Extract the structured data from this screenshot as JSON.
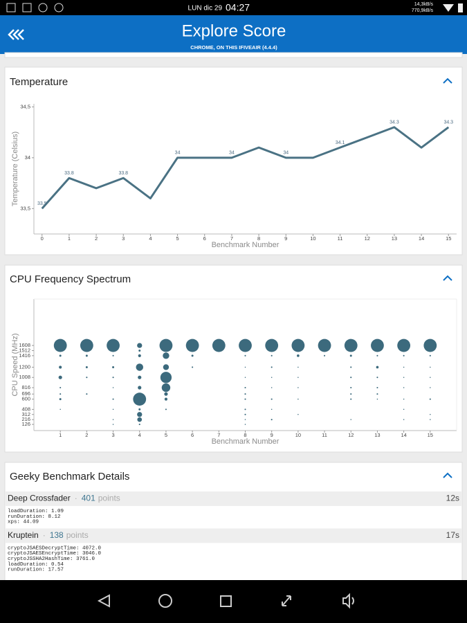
{
  "status_bar": {
    "date": "LUN dic 29",
    "time": "04:27",
    "upload": "14,3kB/s",
    "download": "770,9kB/s"
  },
  "header": {
    "title": "Explore Score",
    "subtitle": "CHROME, ON THIS IFIVEAIR (4.4.4)"
  },
  "chart_data": [
    {
      "type": "line",
      "title": "Temperature",
      "x_label": "Benchmark Number",
      "y_label": "Temperature (Celsius)",
      "x": [
        0,
        1,
        2,
        3,
        4,
        5,
        6,
        7,
        8,
        9,
        10,
        11,
        12,
        13,
        14,
        15
      ],
      "values": [
        33.5,
        33.8,
        33.7,
        33.8,
        33.6,
        34,
        34,
        34,
        34.1,
        34,
        34,
        34.1,
        34.2,
        34.3,
        34.1,
        34.3
      ],
      "value_labels": [
        "33.5",
        "33.8",
        null,
        "33.8",
        null,
        "34",
        null,
        "34",
        null,
        "34",
        null,
        "34.1",
        null,
        "34.3",
        null,
        "34.3"
      ],
      "color": "#4a7284",
      "grid": false,
      "xlim": [
        -0.3,
        15.3
      ],
      "xticks": [
        0,
        1,
        2,
        3,
        4,
        5,
        6,
        7,
        8,
        9,
        10,
        11,
        12,
        13,
        14,
        15
      ],
      "ylim": [
        33.25,
        34.53
      ],
      "yticks": [
        {
          "value": 33.5,
          "label": "33,5"
        },
        34,
        {
          "value": 34.5,
          "label": "34,5"
        }
      ]
    },
    {
      "type": "bubble",
      "title": "CPU Frequency Spectrum",
      "x_label": "Benchmark Number",
      "y_label": "CPU Speed (MHz)",
      "color": "#3c6a7d",
      "grid": false,
      "x": [
        1,
        1,
        1,
        1,
        1,
        1,
        1,
        1,
        2,
        2,
        2,
        2,
        2,
        3,
        3,
        3,
        3,
        3,
        3,
        3,
        3,
        3,
        4,
        4,
        4,
        4,
        4,
        4,
        4,
        4,
        4,
        4,
        4,
        4,
        5,
        5,
        5,
        5,
        5,
        5,
        5,
        5,
        6,
        6,
        6,
        7,
        8,
        8,
        8,
        8,
        8,
        8,
        8,
        8,
        8,
        8,
        8,
        9,
        9,
        9,
        9,
        9,
        9,
        9,
        9,
        10,
        10,
        10,
        10,
        10,
        10,
        10,
        11,
        11,
        12,
        12,
        12,
        12,
        12,
        12,
        12,
        12,
        13,
        13,
        13,
        13,
        13,
        13,
        13,
        14,
        14,
        14,
        14,
        14,
        14,
        14,
        14,
        15,
        15,
        15,
        15,
        15,
        15,
        15,
        15
      ],
      "y": [
        1608,
        1416,
        1200,
        1008,
        816,
        696,
        600,
        408,
        1608,
        1416,
        1200,
        1008,
        696,
        1608,
        1416,
        1200,
        1008,
        816,
        600,
        408,
        216,
        126,
        1608,
        1512,
        1416,
        1200,
        1008,
        816,
        696,
        600,
        408,
        312,
        216,
        126,
        1608,
        1416,
        1200,
        1008,
        816,
        696,
        600,
        408,
        1608,
        1416,
        1200,
        1608,
        1608,
        1416,
        1200,
        1008,
        816,
        696,
        600,
        408,
        312,
        216,
        126,
        1608,
        1416,
        1200,
        1008,
        816,
        600,
        408,
        216,
        1608,
        1416,
        1200,
        1008,
        816,
        600,
        312,
        1608,
        1416,
        1608,
        1416,
        1200,
        1008,
        816,
        696,
        600,
        216,
        1608,
        1416,
        1200,
        1008,
        816,
        696,
        600,
        1608,
        1416,
        1200,
        1008,
        816,
        600,
        408,
        216,
        1608,
        1416,
        1200,
        1008,
        816,
        600,
        312,
        216
      ],
      "sizes": [
        80,
        2,
        4,
        6,
        1,
        1,
        2,
        0.5,
        80,
        2,
        2,
        1,
        1,
        80,
        1,
        2,
        1,
        0.5,
        1,
        0.5,
        0.5,
        0.5,
        12,
        2,
        4,
        25,
        6,
        6,
        3,
        80,
        2,
        12,
        10,
        1,
        80,
        20,
        16,
        60,
        35,
        6,
        4,
        1,
        80,
        2,
        1,
        80,
        80,
        1,
        0.5,
        0.5,
        1,
        1,
        1,
        1,
        1,
        0.5,
        0.5,
        80,
        1,
        1,
        0.5,
        0.5,
        1,
        0.5,
        1,
        80,
        3,
        0.5,
        0.5,
        0.5,
        0.5,
        0.5,
        80,
        1,
        80,
        2,
        1,
        1,
        1,
        1,
        1,
        0.5,
        80,
        1,
        3,
        1,
        1,
        1,
        0.5,
        80,
        1,
        0.5,
        0.5,
        0.5,
        0.5,
        0.5,
        0.5,
        80,
        1,
        0.5,
        0.5,
        0.5,
        1,
        0.5,
        0.5
      ],
      "xlim": [
        0,
        16
      ],
      "xticks": [
        1,
        2,
        3,
        4,
        5,
        6,
        7,
        8,
        9,
        10,
        11,
        12,
        13,
        14,
        15
      ],
      "ylim": [
        10,
        2480
      ],
      "yticks": [
        126,
        216,
        312,
        408,
        600,
        696,
        816,
        1008,
        1200,
        1416,
        1512,
        1608
      ]
    }
  ],
  "details": {
    "title": "Geeky Benchmark Details",
    "separator": "·",
    "benchmarks": [
      {
        "name": "Deep Crossfader",
        "score": 401,
        "unit": "points",
        "time": "12s",
        "lines": [
          "loadDuration: 1.09",
          "runDuration: 8.12",
          "xps: 44.09"
        ]
      },
      {
        "name": "Kruptein",
        "score": 138,
        "unit": "points",
        "time": "17s",
        "lines": [
          "cryptoJSAESDecryptTime: 4072.0",
          "cryptoJSAESEncryptTime: 3046.0",
          "cryptoJSSHA2HashTime: 3761.0",
          "loadDuration: 0.54",
          "runDuration: 17.57"
        ]
      }
    ]
  }
}
